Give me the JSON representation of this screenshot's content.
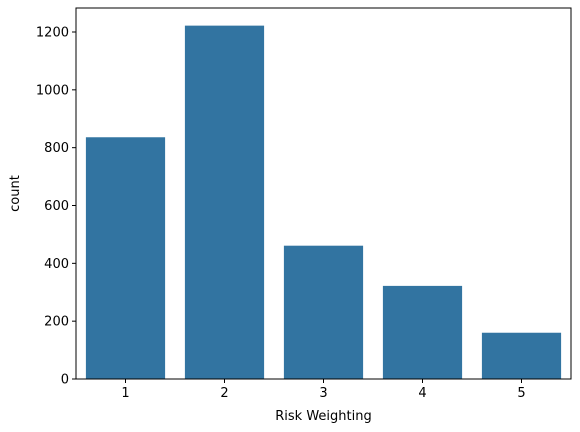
{
  "chart_data": {
    "type": "bar",
    "title": "",
    "xlabel": "Risk Weighting",
    "ylabel": "count",
    "categories": [
      "1",
      "2",
      "3",
      "4",
      "5"
    ],
    "values": [
      836,
      1222,
      461,
      322,
      160
    ],
    "ylim": [
      0,
      1283
    ],
    "yticks": [
      0,
      200,
      400,
      600,
      800,
      1000,
      1200
    ],
    "grid": false,
    "legend": "none",
    "bar_color": "#3274a1"
  }
}
